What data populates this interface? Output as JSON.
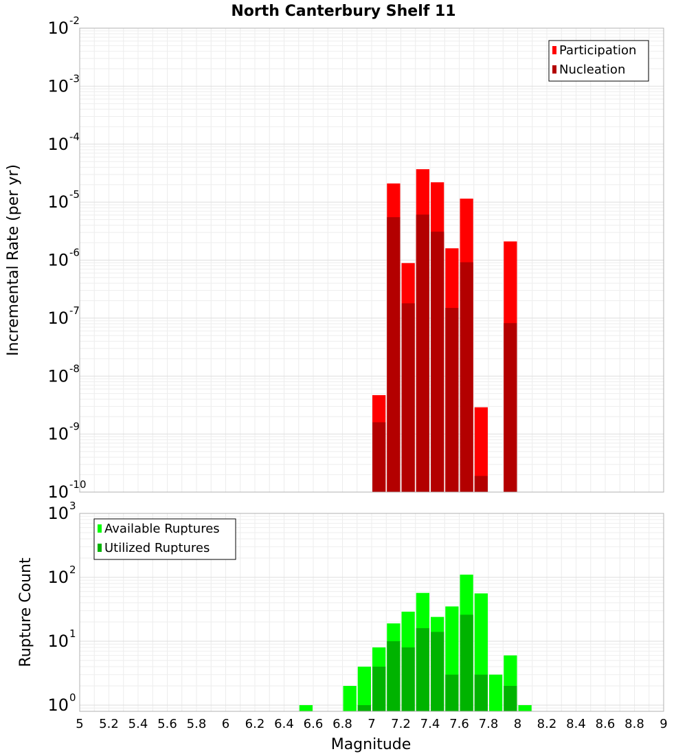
{
  "chart_data": [
    {
      "type": "bar",
      "title": "North Canterbury Shelf 11",
      "xlabel": "",
      "ylabel": "Incremental Rate (per yr)",
      "yscale": "log",
      "ylim": [
        1e-10,
        0.01
      ],
      "xlim": [
        5,
        9
      ],
      "grid": true,
      "legend_position": "top-right",
      "bin_width": 0.1,
      "series": [
        {
          "name": "Participation",
          "color": "#ff0000",
          "x": [
            7.05,
            7.15,
            7.25,
            7.35,
            7.45,
            7.55,
            7.65,
            7.75,
            7.95
          ],
          "values": [
            4.7e-09,
            2.1e-05,
            8.9e-07,
            3.7e-05,
            2.2e-05,
            1.6e-06,
            1.15e-05,
            2.9e-09,
            2.1e-06
          ]
        },
        {
          "name": "Nucleation",
          "color": "#b30000",
          "x": [
            7.05,
            7.15,
            7.25,
            7.35,
            7.45,
            7.55,
            7.65,
            7.75,
            7.95
          ],
          "values": [
            1.6e-09,
            5.5e-06,
            1.8e-07,
            6.1e-06,
            3.1e-06,
            1.5e-07,
            9.2e-07,
            1.9e-10,
            8.2e-08
          ]
        }
      ]
    },
    {
      "type": "bar",
      "title": "",
      "xlabel": "Magnitude",
      "ylabel": "Rupture Count",
      "yscale": "log",
      "ylim": [
        0.8,
        1000
      ],
      "xlim": [
        5,
        9
      ],
      "grid": true,
      "legend_position": "top-left",
      "bin_width": 0.1,
      "series": [
        {
          "name": "Available Ruptures",
          "color": "#00ff00",
          "x": [
            6.55,
            6.85,
            6.95,
            7.05,
            7.15,
            7.25,
            7.35,
            7.45,
            7.55,
            7.65,
            7.75,
            7.85,
            7.95,
            8.05
          ],
          "values": [
            1,
            2,
            4,
            8,
            19,
            29,
            57,
            24,
            35,
            110,
            56,
            3,
            6,
            1
          ]
        },
        {
          "name": "Utilized Ruptures",
          "color": "#00b300",
          "x": [
            6.95,
            7.05,
            7.15,
            7.25,
            7.35,
            7.45,
            7.55,
            7.65,
            7.75,
            7.95
          ],
          "values": [
            1,
            4,
            10,
            8,
            16,
            14,
            3,
            26,
            3,
            2
          ]
        }
      ]
    }
  ],
  "x_tick_labels": [
    "5",
    "5.2",
    "5.4",
    "5.6",
    "5.8",
    "6",
    "6.2",
    "6.4",
    "6.6",
    "6.8",
    "7",
    "7.2",
    "7.4",
    "7.6",
    "7.8",
    "8",
    "8.2",
    "8.4",
    "8.6",
    "8.8",
    "9"
  ],
  "top_y_ticks": [
    {
      "base": "10",
      "exp": "-10"
    },
    {
      "base": "10",
      "exp": "-9"
    },
    {
      "base": "10",
      "exp": "-8"
    },
    {
      "base": "10",
      "exp": "-7"
    },
    {
      "base": "10",
      "exp": "-6"
    },
    {
      "base": "10",
      "exp": "-5"
    },
    {
      "base": "10",
      "exp": "-4"
    },
    {
      "base": "10",
      "exp": "-3"
    },
    {
      "base": "10",
      "exp": "-2"
    }
  ],
  "bottom_y_ticks": [
    {
      "base": "10",
      "exp": "0"
    },
    {
      "base": "10",
      "exp": "1"
    },
    {
      "base": "10",
      "exp": "2"
    },
    {
      "base": "10",
      "exp": "3"
    }
  ]
}
